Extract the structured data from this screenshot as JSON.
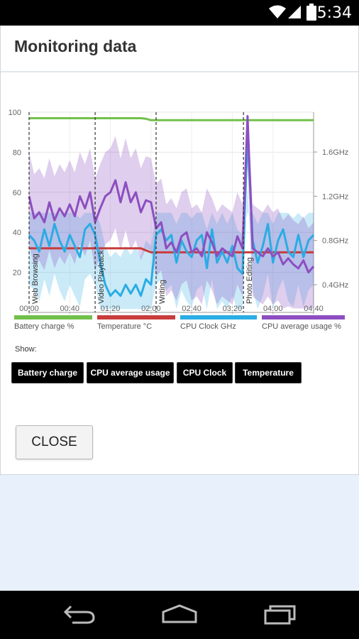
{
  "status": {
    "time": "5:34"
  },
  "dialog": {
    "title": "Monitoring data"
  },
  "chart_data": {
    "type": "line",
    "x_ticks": [
      "00:00",
      "00:40",
      "01:20",
      "02:00",
      "02:40",
      "03:20",
      "04:00",
      "04:40"
    ],
    "x_range_minutes": [
      0,
      280
    ],
    "y_left_ticks": [
      "20",
      "40",
      "60",
      "80",
      "100"
    ],
    "y_left_range": [
      0,
      100
    ],
    "y_right_ticks": [
      "0.4GHz",
      "0.8GHz",
      "1.2GHz",
      "1.6GHz"
    ],
    "y_right_range_ghz": [
      0.15,
      1.96
    ],
    "grid": true,
    "segments": [
      {
        "label": "Web Browsing",
        "start": 0
      },
      {
        "label": "Video Playback",
        "start": 65
      },
      {
        "label": "Writing",
        "start": 125
      },
      {
        "label": "Photo Editing",
        "start": 211
      }
    ],
    "series": [
      {
        "name": "Battery charge %",
        "axis": "left",
        "color": "#72c04a",
        "x": [
          0,
          110,
          115,
          120,
          280
        ],
        "y": [
          97,
          97,
          96.7,
          96,
          96
        ]
      },
      {
        "name": "Temperature °C",
        "axis": "left",
        "color": "#c83c3c",
        "x": [
          0,
          110,
          120,
          280
        ],
        "y": [
          32,
          32,
          30,
          30
        ]
      },
      {
        "name": "CPU Clock GHz",
        "axis": "right",
        "color": "#2aace4",
        "x": [
          0,
          5,
          10,
          15,
          20,
          25,
          30,
          35,
          40,
          45,
          50,
          55,
          60,
          65,
          70,
          75,
          80,
          85,
          90,
          95,
          100,
          105,
          110,
          115,
          120,
          125,
          130,
          135,
          140,
          145,
          150,
          155,
          160,
          165,
          170,
          175,
          180,
          185,
          190,
          195,
          200,
          205,
          210,
          215,
          220,
          225,
          230,
          235,
          240,
          245,
          250,
          255,
          260,
          265,
          270,
          275,
          280
        ],
        "y": [
          0.85,
          0.8,
          0.7,
          0.9,
          0.75,
          0.95,
          0.8,
          0.7,
          0.85,
          0.75,
          0.65,
          0.9,
          0.95,
          0.85,
          0.6,
          0.4,
          0.3,
          0.35,
          0.3,
          0.4,
          0.32,
          0.4,
          0.3,
          0.45,
          0.4,
          0.85,
          0.9,
          0.8,
          0.85,
          0.6,
          0.8,
          0.7,
          0.65,
          0.8,
          0.85,
          0.55,
          0.9,
          0.6,
          0.7,
          0.6,
          0.75,
          0.55,
          0.5,
          1.75,
          0.8,
          0.6,
          0.75,
          0.95,
          0.6,
          0.8,
          0.9,
          0.7,
          0.65,
          0.85,
          0.65,
          0.8,
          0.85
        ]
      },
      {
        "name": "CPU average usage %",
        "axis": "left",
        "color": "#8c4ec0",
        "x": [
          0,
          5,
          10,
          15,
          20,
          25,
          30,
          35,
          40,
          45,
          50,
          55,
          60,
          65,
          70,
          75,
          80,
          85,
          90,
          95,
          100,
          105,
          110,
          115,
          120,
          125,
          130,
          135,
          140,
          145,
          150,
          155,
          160,
          165,
          170,
          175,
          180,
          185,
          190,
          195,
          200,
          205,
          210,
          215,
          220,
          225,
          230,
          235,
          240,
          245,
          250,
          255,
          260,
          265,
          270,
          275,
          280
        ],
        "y": [
          58,
          47,
          50,
          45,
          55,
          46,
          52,
          48,
          54,
          48,
          58,
          52,
          60,
          45,
          52,
          58,
          60,
          66,
          55,
          65,
          55,
          60,
          50,
          56,
          55,
          42,
          45,
          32,
          35,
          30,
          38,
          40,
          30,
          32,
          28,
          40,
          35,
          28,
          32,
          30,
          28,
          38,
          32,
          98,
          32,
          30,
          28,
          32,
          28,
          30,
          24,
          27,
          24,
          22,
          26,
          20,
          23
        ]
      }
    ]
  },
  "legend": [
    {
      "label": "Battery charge %",
      "color": "#72c04a"
    },
    {
      "label": "Temperature °C",
      "color": "#c83c3c"
    },
    {
      "label": "CPU Clock GHz",
      "color": "#2aace4"
    },
    {
      "label": "CPU average usage %",
      "color": "#8c4ec0"
    }
  ],
  "show": {
    "label": "Show:",
    "buttons": [
      "Battery charge",
      "CPU average usage",
      "CPU Clock",
      "Temperature"
    ]
  },
  "close_label": "CLOSE",
  "icons": {
    "wifi": "wifi-icon",
    "signal": "cell-signal-icon",
    "battery": "battery-icon",
    "back": "back-icon",
    "home": "home-icon",
    "recents": "recent-apps-icon"
  }
}
